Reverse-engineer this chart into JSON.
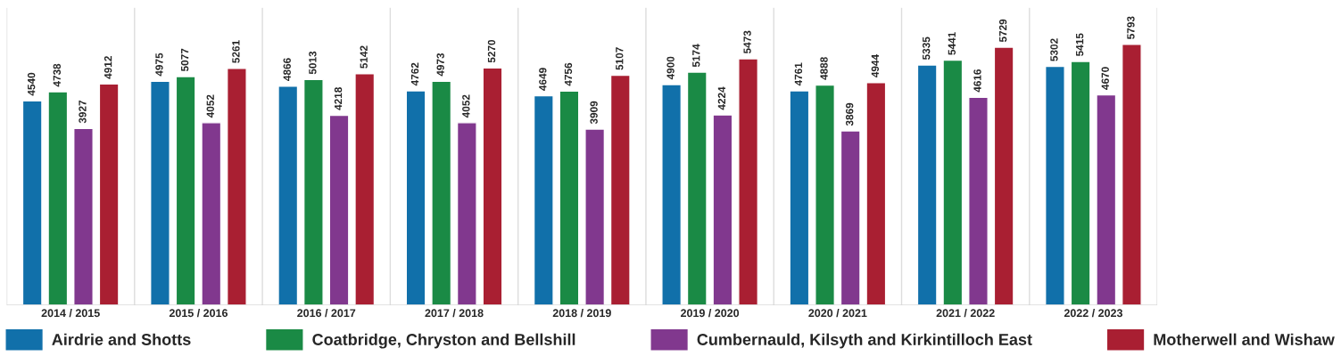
{
  "chart_data": {
    "type": "bar",
    "categories": [
      "2014 / 2015",
      "2015 / 2016",
      "2016 / 2017",
      "2017 / 2018",
      "2018 / 2019",
      "2019 / 2020",
      "2020 / 2021",
      "2021 / 2022",
      "2022 / 2023"
    ],
    "series": [
      {
        "name": "Airdrie and Shotts",
        "color": "#1170aa",
        "values": [
          4540,
          4975,
          4866,
          4762,
          4649,
          4900,
          4761,
          5335,
          5302
        ]
      },
      {
        "name": "Coatbridge, Chryston and Bellshill",
        "color": "#1a8a45",
        "values": [
          4738,
          5077,
          5013,
          4973,
          4756,
          5174,
          4888,
          5441,
          5415
        ]
      },
      {
        "name": "Cumbernauld, Kilsyth and Kirkintilloch East",
        "color": "#81388e",
        "values": [
          3927,
          4052,
          4218,
          4052,
          3909,
          4224,
          3869,
          4616,
          4670
        ]
      },
      {
        "name": "Motherwell and Wishaw",
        "color": "#a91f32",
        "values": [
          4912,
          5261,
          5142,
          5270,
          5107,
          5473,
          4944,
          5729,
          5793
        ]
      }
    ],
    "data_labels": true,
    "grid": "x",
    "legend": "bottom",
    "tick_labels": "x"
  }
}
